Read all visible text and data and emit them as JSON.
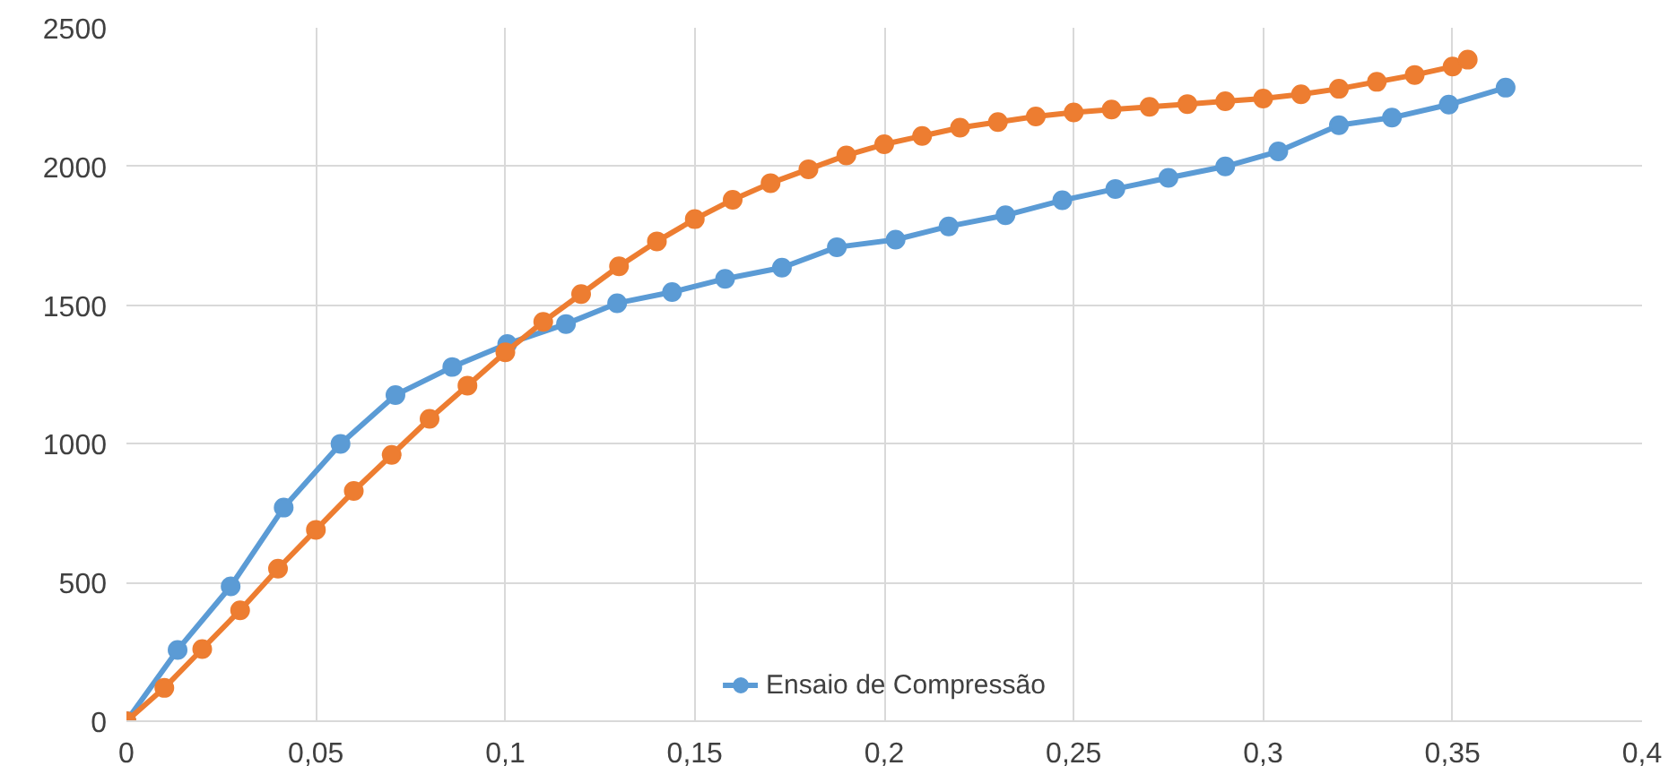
{
  "chart_data": {
    "type": "line",
    "marker": "circle",
    "grid": true,
    "legend": "bottom",
    "xlim": [
      0,
      0.4
    ],
    "ylim": [
      0,
      2500
    ],
    "xticks": [
      0,
      {
        "value": 0.05,
        "label": "0,05"
      },
      {
        "value": 0.1,
        "label": "0,1"
      },
      {
        "value": 0.15,
        "label": "0,15"
      },
      {
        "value": 0.2,
        "label": "0,2"
      },
      {
        "value": 0.25,
        "label": "0,25"
      },
      {
        "value": 0.3,
        "label": "0,3"
      },
      {
        "value": 0.35,
        "label": "0,35"
      },
      {
        "value": 0.4,
        "label": "0,4"
      }
    ],
    "yticks": [
      0,
      500,
      1000,
      1500,
      2000,
      2500
    ],
    "series": [
      {
        "name": "Ensaio de Compressão",
        "color": "#5b9bd5",
        "x": [
          0,
          0.0135,
          0.0275,
          0.0415,
          0.0565,
          0.071,
          0.086,
          0.1005,
          0.116,
          0.1295,
          0.144,
          0.158,
          0.173,
          0.1875,
          0.203,
          0.217,
          0.232,
          0.247,
          0.261,
          0.275,
          0.29,
          0.304,
          0.32,
          0.334,
          0.349,
          0.364
        ],
        "values": [
          0,
          257,
          486,
          770,
          1000,
          1176,
          1277,
          1360,
          1432,
          1507,
          1547,
          1595,
          1635,
          1709,
          1736,
          1784,
          1824,
          1878,
          1919,
          1959,
          2000,
          2054,
          2149,
          2176,
          2223,
          2284
        ]
      },
      {
        "color": "#ed7d31",
        "x": [
          0,
          0.01,
          0.02,
          0.03,
          0.04,
          0.05,
          0.06,
          0.07,
          0.08,
          0.09,
          0.1,
          0.11,
          0.12,
          0.13,
          0.14,
          0.15,
          0.16,
          0.17,
          0.18,
          0.19,
          0.2,
          0.21,
          0.22,
          0.23,
          0.24,
          0.25,
          0.26,
          0.27,
          0.28,
          0.29,
          0.3,
          0.31,
          0.32,
          0.33,
          0.34,
          0.35,
          0.354
        ],
        "values": [
          0,
          120,
          260,
          400,
          550,
          690,
          830,
          960,
          1090,
          1210,
          1330,
          1440,
          1540,
          1640,
          1730,
          1810,
          1880,
          1940,
          1990,
          2040,
          2080,
          2110,
          2140,
          2160,
          2180,
          2195,
          2205,
          2215,
          2225,
          2235,
          2245,
          2260,
          2280,
          2305,
          2330,
          2360,
          2385
        ]
      }
    ]
  }
}
